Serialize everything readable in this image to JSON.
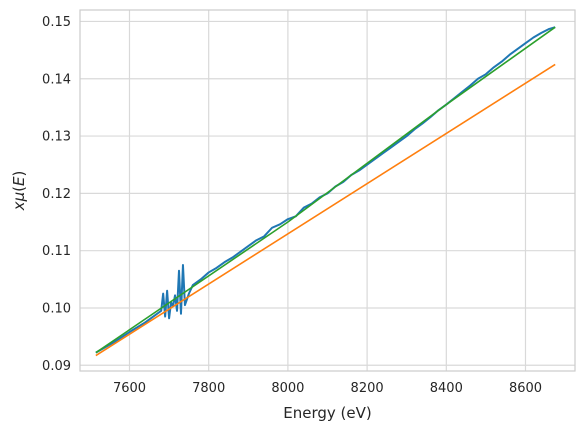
{
  "chart_data": {
    "type": "line",
    "title": "",
    "xlabel": "Energy (eV)",
    "ylabel": "xμ(E)",
    "ylabel_parts": [
      "x",
      "μ",
      "(",
      "E",
      ")"
    ],
    "xlim": [
      7475,
      8725
    ],
    "ylim": [
      0.089,
      0.152
    ],
    "xticks": [
      7600,
      7800,
      8000,
      8200,
      8400,
      8600
    ],
    "yticks": [
      0.09,
      0.1,
      0.11,
      0.12,
      0.13,
      0.14,
      0.15
    ],
    "xtick_labels": [
      "7600",
      "7800",
      "8000",
      "8200",
      "8400",
      "8600"
    ],
    "ytick_labels": [
      "0.09",
      "0.10",
      "0.11",
      "0.12",
      "0.13",
      "0.14",
      "0.15"
    ],
    "grid": true,
    "legend": "none",
    "series": [
      {
        "color": "#1f77b4",
        "x": [
          7515,
          7560,
          7600,
          7640,
          7670,
          7680,
          7685,
          7690,
          7695,
          7700,
          7705,
          7710,
          7715,
          7720,
          7725,
          7730,
          7735,
          7740,
          7750,
          7760,
          7780,
          7800,
          7820,
          7840,
          7860,
          7880,
          7900,
          7920,
          7940,
          7960,
          7980,
          8000,
          8020,
          8040,
          8060,
          8080,
          8100,
          8120,
          8140,
          8160,
          8180,
          8200,
          8220,
          8240,
          8260,
          8280,
          8300,
          8320,
          8340,
          8360,
          8380,
          8400,
          8420,
          8440,
          8460,
          8480,
          8500,
          8520,
          8540,
          8560,
          8580,
          8600,
          8620,
          8640,
          8660,
          8675
        ],
        "y": [
          0.0922,
          0.094,
          0.0958,
          0.0975,
          0.099,
          0.0995,
          0.1025,
          0.0985,
          0.103,
          0.0982,
          0.101,
          0.1003,
          0.1022,
          0.0995,
          0.1065,
          0.099,
          0.1075,
          0.1005,
          0.1025,
          0.104,
          0.105,
          0.1062,
          0.107,
          0.108,
          0.1088,
          0.1098,
          0.1108,
          0.1118,
          0.1125,
          0.114,
          0.1146,
          0.1155,
          0.116,
          0.1175,
          0.1182,
          0.1193,
          0.12,
          0.1212,
          0.122,
          0.1232,
          0.124,
          0.125,
          0.126,
          0.127,
          0.128,
          0.129,
          0.13,
          0.1312,
          0.1322,
          0.1333,
          0.1345,
          0.1355,
          0.1366,
          0.1377,
          0.1388,
          0.14,
          0.1408,
          0.142,
          0.143,
          0.1442,
          0.1452,
          0.1462,
          0.1472,
          0.148,
          0.1487,
          0.149
        ]
      },
      {
        "color": "#ff7f0e",
        "x": [
          7515,
          8675
        ],
        "y": [
          0.0917,
          0.1425
        ]
      },
      {
        "color": "#2ca02c",
        "x": [
          7515,
          8000,
          8400,
          8675
        ],
        "y": [
          0.0922,
          0.115,
          0.1355,
          0.149
        ]
      }
    ]
  }
}
